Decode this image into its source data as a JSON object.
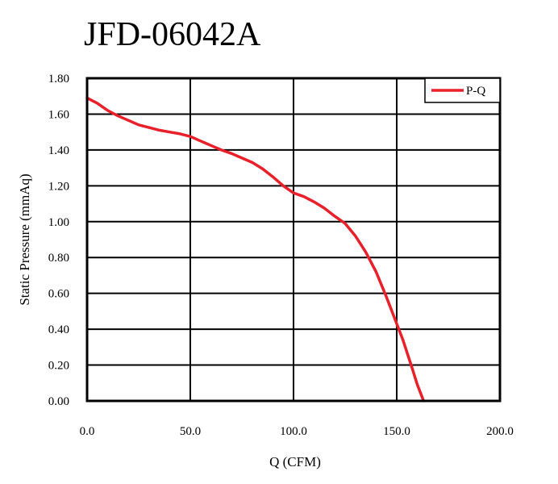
{
  "chart_data": {
    "type": "line",
    "title": "JFD-06042A",
    "xlabel": "Q (CFM)",
    "ylabel": "Static Pressure (mmAq)",
    "xlim": [
      0,
      200
    ],
    "ylim": [
      0,
      1.8
    ],
    "x_ticks": [
      "0.0",
      "50.0",
      "100.0",
      "150.0",
      "200.0"
    ],
    "y_ticks": [
      "0.00",
      "0.20",
      "0.40",
      "0.60",
      "0.80",
      "1.00",
      "1.20",
      "1.40",
      "1.60",
      "1.80"
    ],
    "x_tick_values": [
      0,
      50,
      100,
      150,
      200
    ],
    "y_tick_values": [
      0,
      0.2,
      0.4,
      0.6,
      0.8,
      1.0,
      1.2,
      1.4,
      1.6,
      1.8
    ],
    "grid": true,
    "legend_position": "top-right",
    "series": [
      {
        "name": "P-Q",
        "color": "#e8202a",
        "x": [
          0,
          5,
          10,
          15,
          20,
          25,
          30,
          35,
          40,
          45,
          50,
          55,
          60,
          65,
          70,
          75,
          80,
          85,
          90,
          95,
          100,
          105,
          110,
          115,
          120,
          125,
          130,
          135,
          140,
          145,
          150,
          153,
          157,
          160,
          163
        ],
        "y": [
          1.69,
          1.66,
          1.62,
          1.59,
          1.565,
          1.54,
          1.525,
          1.51,
          1.5,
          1.49,
          1.475,
          1.45,
          1.425,
          1.4,
          1.38,
          1.355,
          1.33,
          1.295,
          1.25,
          1.2,
          1.16,
          1.14,
          1.11,
          1.075,
          1.03,
          0.99,
          0.92,
          0.83,
          0.72,
          0.58,
          0.43,
          0.34,
          0.2,
          0.09,
          0.0
        ]
      }
    ]
  }
}
